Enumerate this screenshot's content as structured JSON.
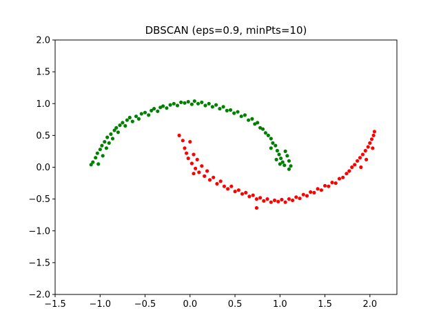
{
  "chart_data": {
    "type": "scatter",
    "title": "DBSCAN (eps=0.9, minPts=10)",
    "xlabel": "",
    "ylabel": "",
    "xlim": [
      -1.5,
      2.3
    ],
    "ylim": [
      -2.0,
      2.0
    ],
    "grid": false,
    "x_ticks": [
      -1.5,
      -1.0,
      -0.5,
      0.0,
      0.5,
      1.0,
      1.5,
      2.0
    ],
    "x_tick_labels": [
      "−1.5",
      "−1.0",
      "−0.5",
      "0.0",
      "0.5",
      "1.0",
      "1.5",
      "2.0"
    ],
    "y_ticks": [
      -2.0,
      -1.5,
      -1.0,
      -0.5,
      0.0,
      0.5,
      1.0,
      1.5,
      2.0
    ],
    "y_tick_labels": [
      "−2.0",
      "−1.5",
      "−1.0",
      "−0.5",
      "0.0",
      "0.5",
      "1.0",
      "1.5",
      "2.0"
    ],
    "series": [
      {
        "color": "#008000",
        "points": [
          [
            -1.1,
            0.04
          ],
          [
            -1.08,
            0.08
          ],
          [
            -1.05,
            0.15
          ],
          [
            -1.03,
            0.22
          ],
          [
            -1.02,
            0.05
          ],
          [
            -1.0,
            0.28
          ],
          [
            -0.98,
            0.34
          ],
          [
            -0.97,
            0.18
          ],
          [
            -0.95,
            0.4
          ],
          [
            -0.93,
            0.3
          ],
          [
            -0.92,
            0.47
          ],
          [
            -0.9,
            0.38
          ],
          [
            -0.88,
            0.52
          ],
          [
            -0.86,
            0.45
          ],
          [
            -0.84,
            0.58
          ],
          [
            -0.82,
            0.62
          ],
          [
            -0.8,
            0.55
          ],
          [
            -0.78,
            0.66
          ],
          [
            -0.75,
            0.7
          ],
          [
            -0.72,
            0.65
          ],
          [
            -0.7,
            0.74
          ],
          [
            -0.67,
            0.78
          ],
          [
            -0.64,
            0.72
          ],
          [
            -0.6,
            0.8
          ],
          [
            -0.57,
            0.76
          ],
          [
            -0.54,
            0.84
          ],
          [
            -0.5,
            0.86
          ],
          [
            -0.46,
            0.82
          ],
          [
            -0.43,
            0.89
          ],
          [
            -0.4,
            0.92
          ],
          [
            -0.36,
            0.88
          ],
          [
            -0.33,
            0.94
          ],
          [
            -0.3,
            0.96
          ],
          [
            -0.26,
            0.93
          ],
          [
            -0.22,
            0.98
          ],
          [
            -0.18,
            1.0
          ],
          [
            -0.14,
            0.97
          ],
          [
            -0.1,
            1.02
          ],
          [
            -0.06,
            1.01
          ],
          [
            -0.02,
            1.03
          ],
          [
            0.02,
            0.99
          ],
          [
            0.05,
            1.04
          ],
          [
            0.09,
            1.0
          ],
          [
            0.13,
            1.02
          ],
          [
            0.17,
            0.97
          ],
          [
            0.21,
            1.0
          ],
          [
            0.25,
            0.95
          ],
          [
            0.29,
            0.98
          ],
          [
            0.33,
            0.92
          ],
          [
            0.37,
            0.95
          ],
          [
            0.41,
            0.89
          ],
          [
            0.45,
            0.9
          ],
          [
            0.49,
            0.85
          ],
          [
            0.53,
            0.87
          ],
          [
            0.57,
            0.8
          ],
          [
            0.61,
            0.82
          ],
          [
            0.65,
            0.74
          ],
          [
            0.69,
            0.76
          ],
          [
            0.72,
            0.68
          ],
          [
            0.75,
            0.7
          ],
          [
            0.78,
            0.62
          ],
          [
            0.81,
            0.6
          ],
          [
            0.84,
            0.54
          ],
          [
            0.87,
            0.5
          ],
          [
            0.9,
            0.45
          ],
          [
            0.92,
            0.38
          ],
          [
            0.95,
            0.34
          ],
          [
            0.97,
            0.26
          ],
          [
            0.99,
            0.2
          ],
          [
            1.01,
            0.14
          ],
          [
            1.03,
            0.08
          ],
          [
            1.05,
            0.03
          ],
          [
            1.08,
            0.18
          ],
          [
            1.1,
            0.1
          ],
          [
            1.12,
            0.02
          ],
          [
            1.0,
            0.05
          ],
          [
            0.96,
            0.12
          ],
          [
            1.06,
            0.25
          ],
          [
            0.9,
            0.3
          ],
          [
            1.1,
            -0.03
          ]
        ]
      },
      {
        "color": "#ff0000",
        "points": [
          [
            -0.12,
            0.5
          ],
          [
            -0.08,
            0.42
          ],
          [
            -0.06,
            0.3
          ],
          [
            -0.04,
            0.22
          ],
          [
            -0.02,
            0.14
          ],
          [
            0.0,
            0.4
          ],
          [
            0.02,
            0.06
          ],
          [
            0.04,
            0.2
          ],
          [
            0.06,
            -0.02
          ],
          [
            0.08,
            0.12
          ],
          [
            0.1,
            -0.08
          ],
          [
            0.13,
            0.02
          ],
          [
            0.16,
            -0.14
          ],
          [
            0.19,
            -0.06
          ],
          [
            0.22,
            -0.2
          ],
          [
            0.26,
            -0.16
          ],
          [
            0.3,
            -0.26
          ],
          [
            0.34,
            -0.22
          ],
          [
            0.38,
            -0.3
          ],
          [
            0.42,
            -0.34
          ],
          [
            0.46,
            -0.3
          ],
          [
            0.5,
            -0.38
          ],
          [
            0.54,
            -0.36
          ],
          [
            0.58,
            -0.42
          ],
          [
            0.62,
            -0.4
          ],
          [
            0.66,
            -0.46
          ],
          [
            0.7,
            -0.44
          ],
          [
            0.74,
            -0.5
          ],
          [
            0.78,
            -0.48
          ],
          [
            0.82,
            -0.53
          ],
          [
            0.86,
            -0.5
          ],
          [
            0.9,
            -0.55
          ],
          [
            0.94,
            -0.52
          ],
          [
            0.98,
            -0.54
          ],
          [
            1.02,
            -0.51
          ],
          [
            1.06,
            -0.55
          ],
          [
            1.1,
            -0.5
          ],
          [
            1.14,
            -0.52
          ],
          [
            1.18,
            -0.47
          ],
          [
            1.22,
            -0.49
          ],
          [
            1.26,
            -0.43
          ],
          [
            1.3,
            -0.45
          ],
          [
            1.34,
            -0.39
          ],
          [
            1.38,
            -0.4
          ],
          [
            1.42,
            -0.34
          ],
          [
            1.46,
            -0.36
          ],
          [
            1.5,
            -0.29
          ],
          [
            1.54,
            -0.3
          ],
          [
            1.58,
            -0.24
          ],
          [
            1.62,
            -0.25
          ],
          [
            1.66,
            -0.18
          ],
          [
            1.7,
            -0.16
          ],
          [
            1.74,
            -0.1
          ],
          [
            1.77,
            -0.06
          ],
          [
            1.8,
            0.0
          ],
          [
            1.83,
            0.04
          ],
          [
            1.86,
            0.1
          ],
          [
            1.89,
            0.15
          ],
          [
            1.92,
            0.2
          ],
          [
            1.95,
            0.26
          ],
          [
            1.98,
            0.32
          ],
          [
            2.0,
            0.38
          ],
          [
            2.02,
            0.44
          ],
          [
            2.04,
            0.5
          ],
          [
            2.05,
            0.56
          ],
          [
            1.96,
            0.12
          ],
          [
            2.03,
            0.3
          ],
          [
            1.9,
            0.0
          ],
          [
            0.74,
            -0.64
          ],
          [
            0.04,
            -0.1
          ]
        ]
      }
    ]
  }
}
